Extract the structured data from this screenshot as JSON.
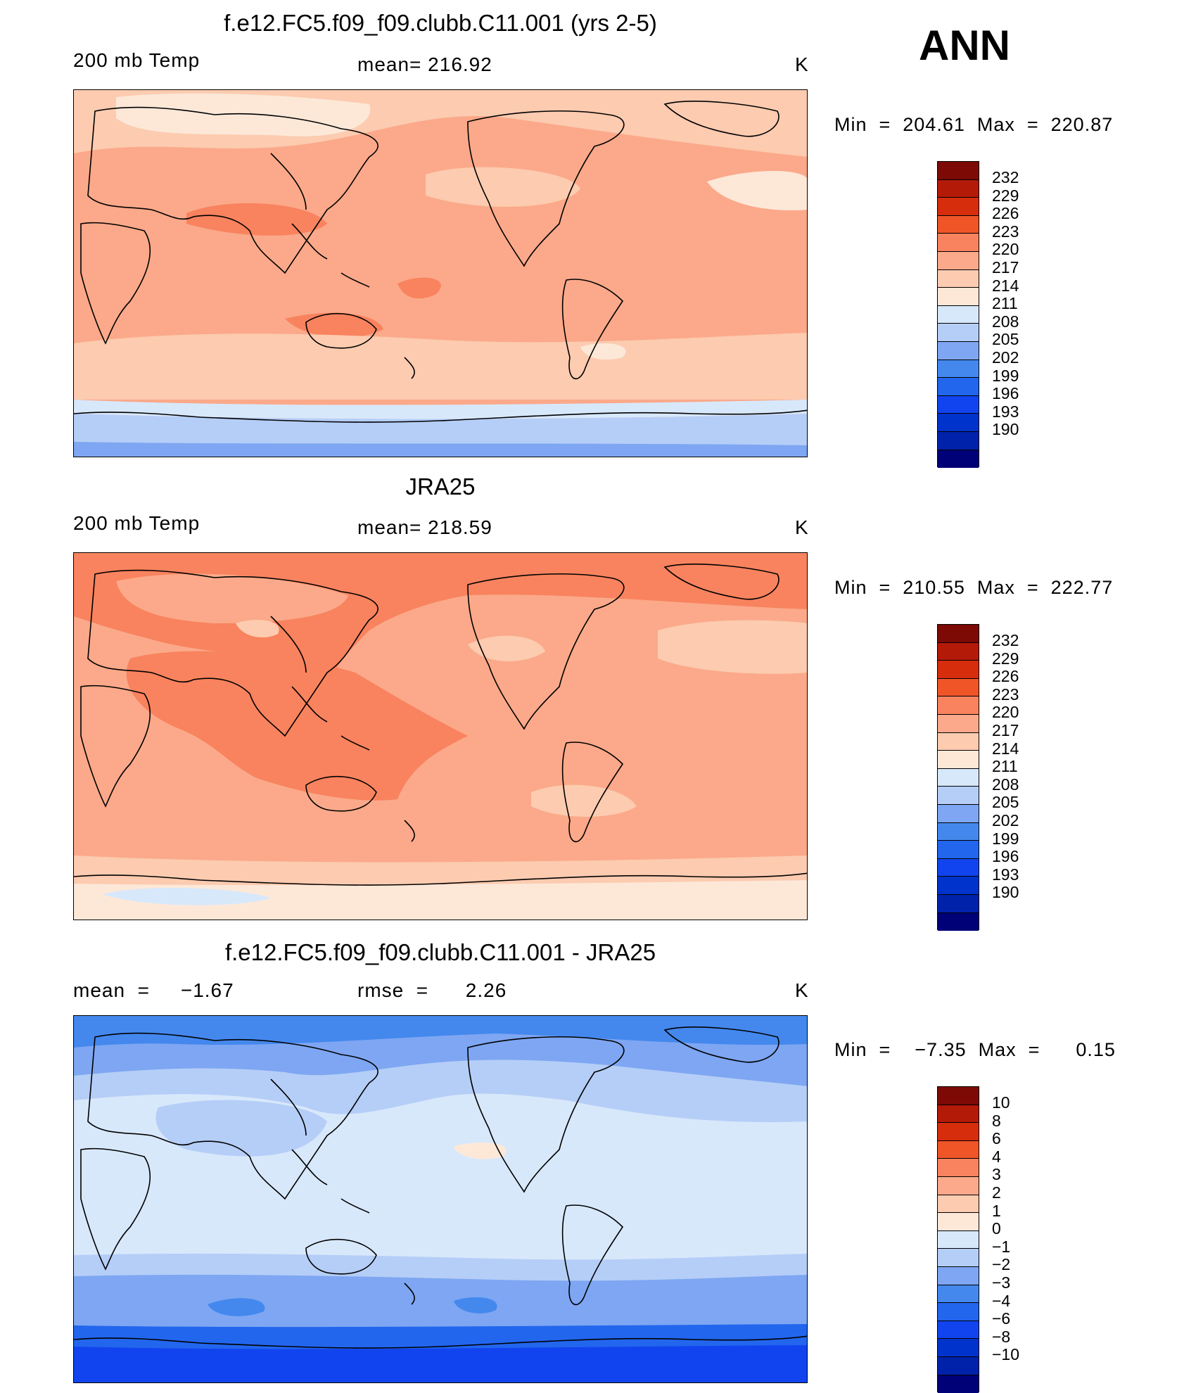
{
  "season": "ANN",
  "colors": {
    "temp_scale": [
      "#000077",
      "#0022aa",
      "#0033cc",
      "#1144ee",
      "#2266ee",
      "#4488ee",
      "#7ea6f2",
      "#b5cef7",
      "#d8e8fb",
      "#fde8d8",
      "#fccbb0",
      "#fba98a",
      "#f8835e",
      "#f05528",
      "#d62d0d",
      "#b31a08",
      "#7d0a05"
    ],
    "diff_scale": [
      "#000077",
      "#0022aa",
      "#0033cc",
      "#1144ee",
      "#2266ee",
      "#4488ee",
      "#7ea6f2",
      "#b5cef7",
      "#d8e8fb",
      "#fde8d8",
      "#fccbb0",
      "#fba98a",
      "#f8835e",
      "#f05528",
      "#d62d0d",
      "#b31a08",
      "#7d0a05"
    ]
  },
  "panels": [
    {
      "title": "f.e12.FC5.f09_f09.clubb.C11.001 (yrs 2-5)",
      "left_label": "200 mb Temp",
      "center_label": "mean=  216.92",
      "units": "K",
      "min_max": "Min  =  204.61  Max  =  220.87",
      "colorbar_ticks": [
        "232",
        "229",
        "226",
        "223",
        "220",
        "217",
        "214",
        "211",
        "208",
        "205",
        "202",
        "199",
        "196",
        "193",
        "190"
      ]
    },
    {
      "title": "JRA25",
      "left_label": "200 mb Temp",
      "center_label": "mean=  218.59",
      "units": "K",
      "min_max": "Min  =  210.55  Max  =  222.77",
      "colorbar_ticks": [
        "232",
        "229",
        "226",
        "223",
        "220",
        "217",
        "214",
        "211",
        "208",
        "205",
        "202",
        "199",
        "196",
        "193",
        "190"
      ]
    },
    {
      "title": "f.e12.FC5.f09_f09.clubb.C11.001 - JRA25",
      "left_label": "mean  =     −1.67",
      "center_label": "rmse  =      2.26",
      "units": "K",
      "min_max": "Min  =    −7.35  Max  =      0.15",
      "colorbar_ticks": [
        "10",
        "8",
        "6",
        "4",
        "3",
        "2",
        "1",
        "0",
        "−1",
        "−2",
        "−3",
        "−4",
        "−6",
        "−8",
        "−10"
      ]
    }
  ]
}
